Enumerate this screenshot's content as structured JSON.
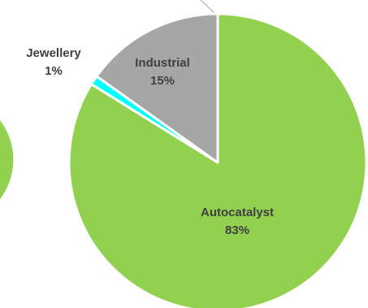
{
  "chart_data": {
    "type": "pie",
    "categories": [
      "Autocatalyst",
      "Jewellery",
      "Industrial"
    ],
    "values": [
      83,
      1,
      15
    ],
    "value_labels": [
      "83%",
      "1%",
      "15%"
    ],
    "colors": [
      "#92D050",
      "#00FFFF",
      "#A6A6A6"
    ],
    "edge_color": "#FFFFFF",
    "label_color": "#404040",
    "title": "",
    "legend": "none"
  }
}
